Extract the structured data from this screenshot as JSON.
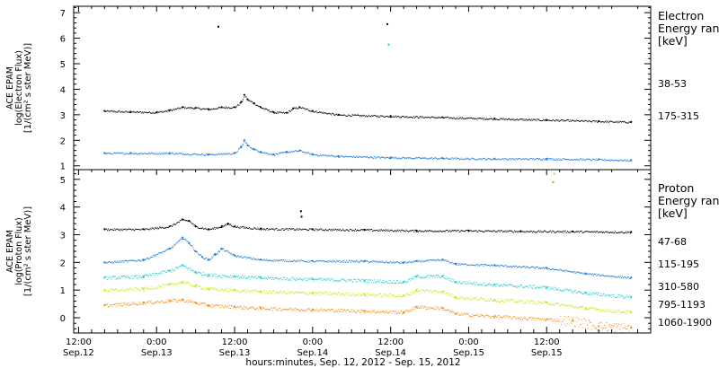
{
  "chart_data": [
    {
      "type": "scatter",
      "panel": "electron",
      "ylabel_lines": [
        "ACE EPAM",
        "log(Electron Flux)",
        "[1/(cm² s ster MeV)]"
      ],
      "legend_title_lines": [
        "Electron",
        "Energy ran",
        "[keV]"
      ],
      "ylim": [
        0.85,
        7.25
      ],
      "yticks": [
        1,
        2,
        3,
        4,
        5,
        6,
        7
      ],
      "series": [
        {
          "name": "38-53",
          "color": "#000000",
          "points": [
            [
              4,
              3.15
            ],
            [
              8,
              3.12
            ],
            [
              12,
              3.1
            ],
            [
              14,
              3.18
            ],
            [
              16,
              3.3
            ],
            [
              18,
              3.27
            ],
            [
              20,
              3.22
            ],
            [
              22,
              3.3
            ],
            [
              24,
              3.3
            ],
            [
              25,
              3.5
            ],
            [
              25.5,
              3.78
            ],
            [
              26,
              3.6
            ],
            [
              27,
              3.45
            ],
            [
              28,
              3.3
            ],
            [
              30,
              3.1
            ],
            [
              32,
              3.08
            ],
            [
              33,
              3.25
            ],
            [
              34,
              3.3
            ],
            [
              36,
              3.15
            ],
            [
              40,
              3.0
            ],
            [
              48,
              2.95
            ],
            [
              56,
              2.9
            ],
            [
              64,
              2.85
            ],
            [
              72,
              2.8
            ],
            [
              80,
              2.75
            ],
            [
              85,
              2.72
            ]
          ]
        },
        {
          "name": "175-315",
          "color": "#1e78d4",
          "points": [
            [
              4,
              1.5
            ],
            [
              8,
              1.5
            ],
            [
              14,
              1.5
            ],
            [
              20,
              1.45
            ],
            [
              24,
              1.5
            ],
            [
              25,
              1.75
            ],
            [
              25.5,
              2.0
            ],
            [
              26,
              1.8
            ],
            [
              27,
              1.65
            ],
            [
              28,
              1.55
            ],
            [
              30,
              1.45
            ],
            [
              32,
              1.55
            ],
            [
              34,
              1.6
            ],
            [
              36,
              1.45
            ],
            [
              40,
              1.38
            ],
            [
              48,
              1.33
            ],
            [
              56,
              1.3
            ],
            [
              64,
              1.28
            ],
            [
              72,
              1.28
            ],
            [
              80,
              1.25
            ],
            [
              85,
              1.22
            ]
          ]
        }
      ],
      "outliers": [
        {
          "x": 21.5,
          "y": 6.45,
          "color": "#000000"
        },
        {
          "x": 47.5,
          "y": 6.55,
          "color": "#000000"
        },
        {
          "x": 47.7,
          "y": 5.75,
          "color": "#1ec8c8"
        }
      ]
    },
    {
      "type": "scatter",
      "panel": "proton",
      "ylabel_lines": [
        "ACE EPAM",
        "log(Proton Flux)",
        "[1/(cm² s ster MeV)]"
      ],
      "legend_title_lines": [
        "Proton",
        "Energy ran",
        "[keV]"
      ],
      "ylim": [
        -0.55,
        5.35
      ],
      "yticks": [
        0,
        1,
        2,
        3,
        4,
        5
      ],
      "series": [
        {
          "name": "47-68",
          "color": "#000000",
          "points": [
            [
              4,
              3.2
            ],
            [
              10,
              3.2
            ],
            [
              14,
              3.3
            ],
            [
              16,
              3.55
            ],
            [
              17,
              3.5
            ],
            [
              18,
              3.3
            ],
            [
              20,
              3.2
            ],
            [
              22,
              3.3
            ],
            [
              23,
              3.4
            ],
            [
              24,
              3.3
            ],
            [
              28,
              3.22
            ],
            [
              36,
              3.2
            ],
            [
              44,
              3.18
            ],
            [
              52,
              3.15
            ],
            [
              60,
              3.15
            ],
            [
              68,
              3.13
            ],
            [
              76,
              3.12
            ],
            [
              85,
              3.1
            ]
          ]
        },
        {
          "name": "115-195",
          "color": "#1e78d4",
          "points": [
            [
              4,
              2.0
            ],
            [
              10,
              2.1
            ],
            [
              14,
              2.5
            ],
            [
              16,
              2.9
            ],
            [
              17,
              2.7
            ],
            [
              18,
              2.4
            ],
            [
              19,
              2.2
            ],
            [
              20,
              2.1
            ],
            [
              21,
              2.3
            ],
            [
              22,
              2.5
            ],
            [
              24,
              2.25
            ],
            [
              28,
              2.1
            ],
            [
              36,
              2.05
            ],
            [
              44,
              2.05
            ],
            [
              50,
              2.0
            ],
            [
              52,
              2.05
            ],
            [
              56,
              2.1
            ],
            [
              58,
              1.95
            ],
            [
              64,
              1.9
            ],
            [
              72,
              1.8
            ],
            [
              78,
              1.6
            ],
            [
              85,
              1.45
            ]
          ]
        },
        {
          "name": "310-580",
          "color": "#1ecbcb",
          "points": [
            [
              4,
              1.45
            ],
            [
              10,
              1.5
            ],
            [
              14,
              1.7
            ],
            [
              16,
              1.9
            ],
            [
              18,
              1.65
            ],
            [
              20,
              1.55
            ],
            [
              24,
              1.5
            ],
            [
              28,
              1.45
            ],
            [
              36,
              1.4
            ],
            [
              44,
              1.35
            ],
            [
              50,
              1.3
            ],
            [
              52,
              1.5
            ],
            [
              56,
              1.5
            ],
            [
              58,
              1.3
            ],
            [
              64,
              1.2
            ],
            [
              72,
              1.1
            ],
            [
              78,
              0.9
            ],
            [
              85,
              0.75
            ]
          ]
        },
        {
          "name": "795-1193",
          "color": "#c8e614",
          "points": [
            [
              4,
              1.0
            ],
            [
              10,
              1.05
            ],
            [
              14,
              1.2
            ],
            [
              16,
              1.3
            ],
            [
              18,
              1.15
            ],
            [
              20,
              1.05
            ],
            [
              24,
              1.0
            ],
            [
              28,
              0.95
            ],
            [
              36,
              0.9
            ],
            [
              44,
              0.85
            ],
            [
              50,
              0.8
            ],
            [
              52,
              1.0
            ],
            [
              56,
              0.95
            ],
            [
              58,
              0.75
            ],
            [
              64,
              0.65
            ],
            [
              72,
              0.55
            ],
            [
              78,
              0.35
            ],
            [
              85,
              0.2
            ]
          ]
        },
        {
          "name": "1060-1900",
          "color": "#f08c14",
          "points": [
            [
              4,
              0.45
            ],
            [
              10,
              0.55
            ],
            [
              14,
              0.62
            ],
            [
              16,
              0.65
            ],
            [
              18,
              0.55
            ],
            [
              20,
              0.45
            ],
            [
              24,
              0.4
            ],
            [
              28,
              0.35
            ],
            [
              36,
              0.3
            ],
            [
              44,
              0.25
            ],
            [
              50,
              0.2
            ],
            [
              52,
              0.4
            ],
            [
              56,
              0.35
            ],
            [
              58,
              0.15
            ],
            [
              64,
              0.05
            ],
            [
              72,
              -0.05
            ],
            [
              76,
              -0.1
            ],
            [
              80,
              -0.3
            ],
            [
              85,
              -0.35
            ]
          ]
        }
      ],
      "outliers": [
        {
          "x": 34.2,
          "y": 3.85,
          "color": "#000000"
        },
        {
          "x": 34.3,
          "y": 3.65,
          "color": "#000000"
        },
        {
          "x": 73.0,
          "y": 4.9,
          "color": "#f08c14"
        },
        {
          "x": 73.2,
          "y": 5.2,
          "color": "#c8e614"
        }
      ]
    }
  ],
  "x_axis": {
    "xlim": [
      -0.75,
      88.0
    ],
    "xlabel": "hours:minutes, Sep. 12, 2012 - Sep. 15, 2012",
    "ticks": [
      {
        "x": 0,
        "time": "12:00",
        "date": "Sep.12"
      },
      {
        "x": 12,
        "time": "0:00",
        "date": "Sep.13"
      },
      {
        "x": 24,
        "time": "12:00",
        "date": "Sep.13"
      },
      {
        "x": 36,
        "time": "0:00",
        "date": "Sep.14"
      },
      {
        "x": 48,
        "time": "12:00",
        "date": "Sep.14"
      },
      {
        "x": 60,
        "time": "0:00",
        "date": "Sep.15"
      },
      {
        "x": 72,
        "time": "12:00",
        "date": "Sep.15"
      }
    ]
  }
}
